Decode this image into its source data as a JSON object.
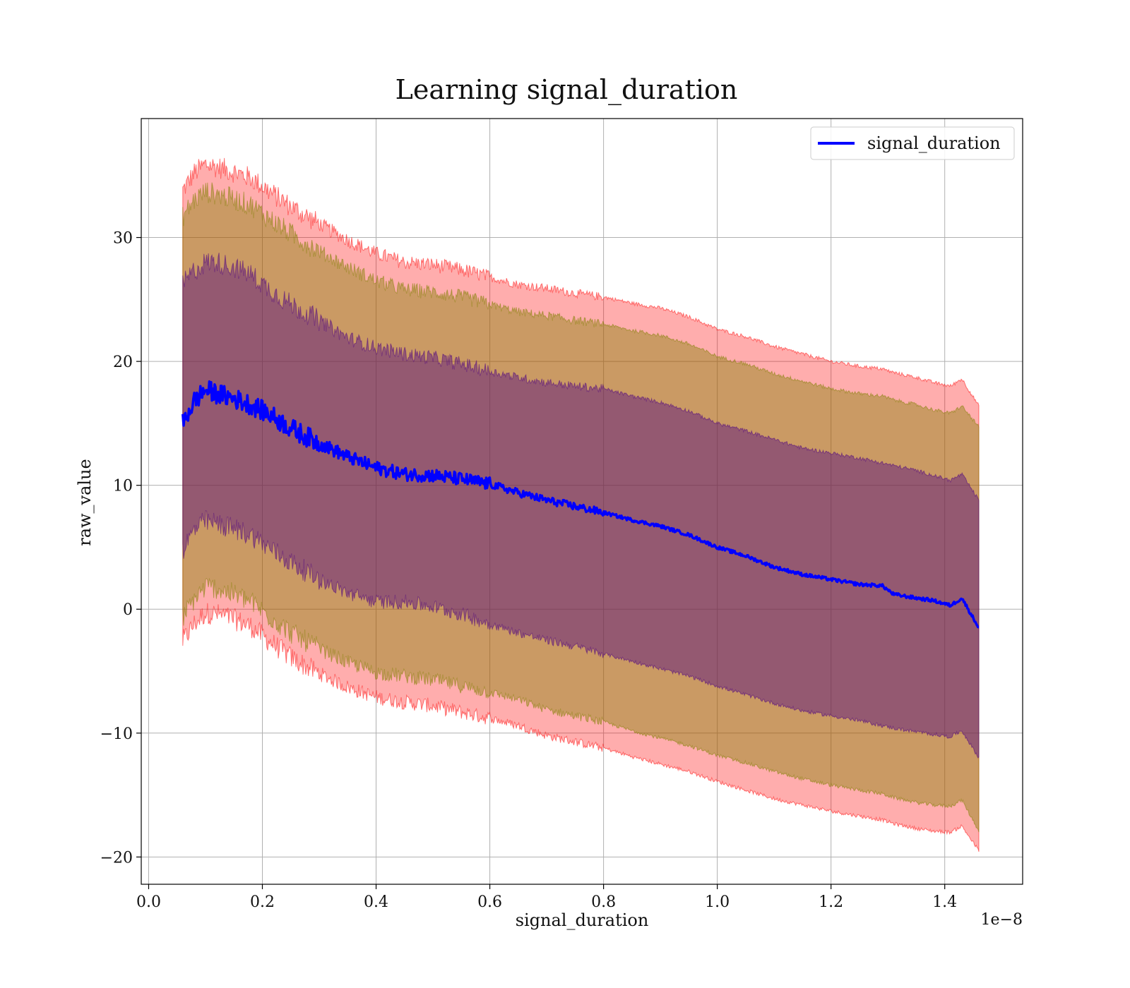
{
  "chart_data": {
    "type": "line",
    "title": "Learning signal_duration",
    "xlabel": "signal_duration",
    "ylabel": "raw_value",
    "x_offset_text": "1e−8",
    "x_scale_exponent": -8,
    "xlim": [
      -0.013,
      1.537
    ],
    "ylim": [
      -22.2,
      39.6
    ],
    "x_ticks": [
      0.0,
      0.2,
      0.4,
      0.6,
      0.8,
      1.0,
      1.2,
      1.4
    ],
    "x_tick_labels": [
      "0.0",
      "0.2",
      "0.4",
      "0.6",
      "0.8",
      "1.0",
      "1.2",
      "1.4"
    ],
    "y_ticks": [
      -20,
      -10,
      0,
      10,
      20,
      30
    ],
    "y_tick_labels": [
      "−20",
      "−10",
      "0",
      "10",
      "20",
      "30"
    ],
    "grid": true,
    "legend_position": "top-right",
    "colors": {
      "line": "#0000ff",
      "band_outer": "#ff0000",
      "band_middle": "#808000",
      "band_inner": "#4b0082"
    },
    "x": [
      0.06,
      0.08,
      0.1,
      0.12,
      0.15,
      0.18,
      0.21,
      0.25,
      0.3,
      0.35,
      0.4,
      0.45,
      0.5,
      0.55,
      0.6,
      0.65,
      0.7,
      0.75,
      0.8,
      0.85,
      0.9,
      0.95,
      1.0,
      1.05,
      1.1,
      1.15,
      1.2,
      1.25,
      1.29,
      1.31,
      1.35,
      1.38,
      1.41,
      1.43,
      1.46
    ],
    "series": [
      {
        "name": "signal_duration",
        "values": [
          15.0,
          16.8,
          17.7,
          17.4,
          17.0,
          16.5,
          15.8,
          14.6,
          13.4,
          12.3,
          11.4,
          10.9,
          10.8,
          10.5,
          10.1,
          9.4,
          8.8,
          8.3,
          7.8,
          7.2,
          6.7,
          6.0,
          5.0,
          4.3,
          3.4,
          2.8,
          2.4,
          2.0,
          1.9,
          1.2,
          0.9,
          0.7,
          0.3,
          0.9,
          -1.5
        ],
        "band_inner": {
          "upper": [
            26.2,
            27.3,
            28.0,
            28.0,
            27.6,
            27.0,
            25.9,
            24.6,
            23.3,
            21.9,
            21.1,
            20.6,
            20.3,
            19.8,
            19.2,
            18.7,
            18.3,
            18.0,
            17.8,
            17.2,
            16.7,
            16.0,
            15.0,
            14.4,
            13.7,
            13.0,
            12.6,
            12.2,
            11.8,
            11.6,
            11.2,
            10.8,
            10.4,
            10.9,
            8.8
          ],
          "lower": [
            4.8,
            6.4,
            7.1,
            6.9,
            6.5,
            6.0,
            5.0,
            3.8,
            2.4,
            1.3,
            0.6,
            0.6,
            0.2,
            -0.4,
            -1.2,
            -1.9,
            -2.5,
            -3.0,
            -3.6,
            -4.2,
            -4.8,
            -5.4,
            -6.2,
            -6.9,
            -7.6,
            -8.2,
            -8.6,
            -9.0,
            -9.4,
            -9.6,
            -9.9,
            -10.1,
            -10.3,
            -9.8,
            -12.0
          ]
        },
        "band_middle": {
          "upper": [
            31.7,
            33.0,
            33.7,
            33.5,
            33.1,
            32.6,
            31.6,
            30.3,
            28.9,
            27.6,
            26.5,
            25.8,
            25.6,
            25.2,
            24.6,
            24.0,
            23.7,
            23.3,
            23.0,
            22.5,
            22.1,
            21.4,
            20.4,
            19.8,
            19.0,
            18.4,
            17.8,
            17.4,
            17.2,
            16.9,
            16.5,
            16.1,
            15.8,
            16.4,
            14.7
          ],
          "lower": [
            -0.7,
            0.8,
            1.8,
            1.7,
            1.2,
            0.6,
            -0.5,
            -1.9,
            -3.2,
            -4.3,
            -5.1,
            -5.4,
            -5.7,
            -6.2,
            -6.7,
            -7.3,
            -8.1,
            -8.6,
            -9.1,
            -9.8,
            -10.4,
            -11.0,
            -11.8,
            -12.4,
            -13.1,
            -13.7,
            -14.2,
            -14.6,
            -14.9,
            -15.2,
            -15.6,
            -15.8,
            -15.9,
            -15.4,
            -17.9
          ]
        },
        "band_outer": {
          "upper": [
            33.8,
            35.2,
            35.9,
            35.7,
            35.3,
            34.8,
            33.8,
            32.5,
            31.1,
            29.8,
            28.7,
            28.0,
            27.8,
            27.4,
            26.8,
            26.2,
            25.9,
            25.5,
            25.2,
            24.7,
            24.3,
            23.6,
            22.6,
            22.0,
            21.2,
            20.6,
            20.0,
            19.6,
            19.4,
            19.1,
            18.7,
            18.3,
            18.0,
            18.6,
            16.4
          ],
          "lower": [
            -2.6,
            -1.2,
            -0.3,
            -0.4,
            -0.8,
            -1.4,
            -2.5,
            -3.9,
            -5.2,
            -6.3,
            -7.1,
            -7.5,
            -7.8,
            -8.3,
            -8.8,
            -9.4,
            -10.2,
            -10.7,
            -11.2,
            -11.9,
            -12.5,
            -13.1,
            -13.9,
            -14.6,
            -15.3,
            -15.8,
            -16.3,
            -16.7,
            -17.0,
            -17.3,
            -17.7,
            -17.9,
            -18.0,
            -17.5,
            -19.5
          ]
        }
      }
    ]
  }
}
